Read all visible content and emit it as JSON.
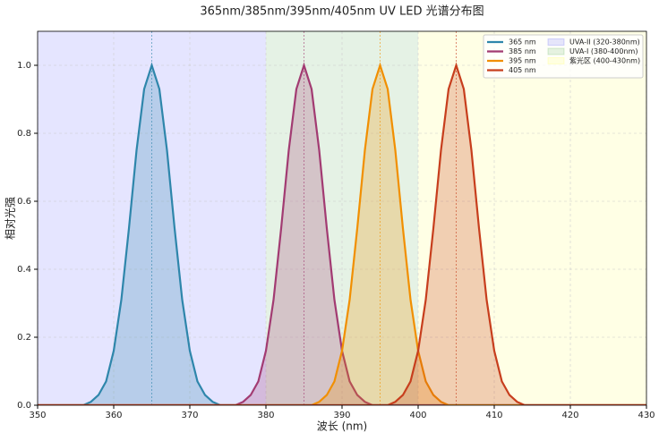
{
  "chart_data": {
    "type": "line",
    "title": "365nm/385nm/395nm/405nm UV LED 光谱分布图",
    "xlabel": "波长 (nm)",
    "ylabel": "相对光强",
    "x": [
      350,
      351,
      352,
      353,
      354,
      355,
      356,
      357,
      358,
      359,
      360,
      361,
      362,
      363,
      364,
      365,
      366,
      367,
      368,
      369,
      370,
      371,
      372,
      373,
      374,
      375,
      376,
      377,
      378,
      379,
      380,
      381,
      382,
      383,
      384,
      385,
      386,
      387,
      388,
      389,
      390,
      391,
      392,
      393,
      394,
      395,
      396,
      397,
      398,
      399,
      400,
      401,
      402,
      403,
      404,
      405,
      406,
      407,
      408,
      409,
      410,
      411,
      412,
      413,
      414,
      415,
      416,
      417,
      418,
      419,
      420,
      421,
      422,
      423,
      424,
      425,
      426,
      427,
      428,
      429,
      430
    ],
    "series": [
      {
        "name": "365 nm",
        "color": "#2e86ab",
        "peak": 365,
        "values": [
          0,
          0,
          0,
          0,
          0,
          0,
          0,
          0.01,
          0.03,
          0.07,
          0.16,
          0.31,
          0.52,
          0.75,
          0.93,
          1,
          0.93,
          0.75,
          0.52,
          0.31,
          0.16,
          0.07,
          0.03,
          0.01,
          0,
          0,
          0,
          0,
          0,
          0,
          0,
          0,
          0,
          0,
          0,
          0,
          0,
          0,
          0,
          0,
          0,
          0,
          0,
          0,
          0,
          0,
          0,
          0,
          0,
          0,
          0,
          0,
          0,
          0,
          0,
          0,
          0,
          0,
          0,
          0,
          0,
          0,
          0,
          0,
          0,
          0,
          0,
          0,
          0,
          0,
          0,
          0,
          0,
          0,
          0,
          0,
          0,
          0,
          0,
          0,
          0
        ]
      },
      {
        "name": "385 nm",
        "color": "#a23b72",
        "peak": 385,
        "values": [
          0,
          0,
          0,
          0,
          0,
          0,
          0,
          0,
          0,
          0,
          0,
          0,
          0,
          0,
          0,
          0,
          0,
          0,
          0,
          0,
          0,
          0,
          0,
          0,
          0,
          0,
          0,
          0.01,
          0.03,
          0.07,
          0.16,
          0.31,
          0.52,
          0.75,
          0.93,
          1,
          0.93,
          0.75,
          0.52,
          0.31,
          0.16,
          0.07,
          0.03,
          0.01,
          0,
          0,
          0,
          0,
          0,
          0,
          0,
          0,
          0,
          0,
          0,
          0,
          0,
          0,
          0,
          0,
          0,
          0,
          0,
          0,
          0,
          0,
          0,
          0,
          0,
          0,
          0,
          0,
          0,
          0,
          0,
          0,
          0,
          0,
          0,
          0,
          0
        ]
      },
      {
        "name": "395 nm",
        "color": "#f18f01",
        "peak": 395,
        "values": [
          0,
          0,
          0,
          0,
          0,
          0,
          0,
          0,
          0,
          0,
          0,
          0,
          0,
          0,
          0,
          0,
          0,
          0,
          0,
          0,
          0,
          0,
          0,
          0,
          0,
          0,
          0,
          0,
          0,
          0,
          0,
          0,
          0,
          0,
          0,
          0,
          0,
          0.01,
          0.03,
          0.07,
          0.16,
          0.31,
          0.52,
          0.75,
          0.93,
          1,
          0.93,
          0.75,
          0.52,
          0.31,
          0.16,
          0.07,
          0.03,
          0.01,
          0,
          0,
          0,
          0,
          0,
          0,
          0,
          0,
          0,
          0,
          0,
          0,
          0,
          0,
          0,
          0,
          0,
          0,
          0,
          0,
          0,
          0,
          0,
          0,
          0,
          0,
          0
        ]
      },
      {
        "name": "405 nm",
        "color": "#c73e1d",
        "peak": 405,
        "values": [
          0,
          0,
          0,
          0,
          0,
          0,
          0,
          0,
          0,
          0,
          0,
          0,
          0,
          0,
          0,
          0,
          0,
          0,
          0,
          0,
          0,
          0,
          0,
          0,
          0,
          0,
          0,
          0,
          0,
          0,
          0,
          0,
          0,
          0,
          0,
          0,
          0,
          0,
          0,
          0,
          0,
          0,
          0,
          0,
          0,
          0,
          0,
          0.01,
          0.03,
          0.07,
          0.16,
          0.31,
          0.52,
          0.75,
          0.93,
          1,
          0.93,
          0.75,
          0.52,
          0.31,
          0.16,
          0.07,
          0.03,
          0.01,
          0,
          0,
          0,
          0,
          0,
          0,
          0,
          0,
          0,
          0,
          0,
          0,
          0,
          0,
          0,
          0,
          0
        ]
      }
    ],
    "bands": [
      {
        "name": "UVA-II (320-380nm)",
        "range": [
          320,
          380
        ],
        "color": "#0000ff"
      },
      {
        "name": "UVA-I (380-400nm)",
        "range": [
          380,
          400
        ],
        "color": "#008000"
      },
      {
        "name": "紫光区 (400-430nm)",
        "range": [
          400,
          430
        ],
        "color": "#ffff00"
      }
    ],
    "xlim": [
      350,
      430
    ],
    "xticks": [
      350,
      360,
      370,
      380,
      390,
      400,
      410,
      420,
      430
    ],
    "ylim": [
      0,
      1.1
    ],
    "yticks": [
      {
        "value": 0,
        "label": "0.0"
      },
      0.2,
      0.4,
      0.6,
      0.8,
      {
        "value": 1,
        "label": "1.0"
      }
    ],
    "grid": true,
    "legend": "upper right"
  }
}
